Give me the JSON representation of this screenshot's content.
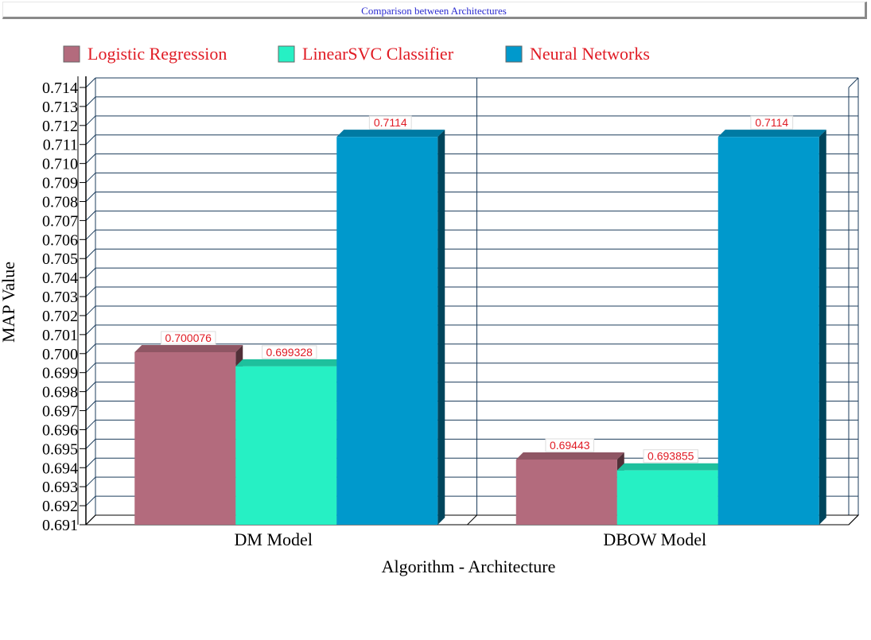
{
  "chart_title": "Comparison between Architectures",
  "chart_data": {
    "type": "bar",
    "title": "Comparison between Architectures",
    "xlabel": "Algorithm - Architecture",
    "ylabel": "MAP Value",
    "categories": [
      "DM Model",
      "DBOW Model"
    ],
    "series": [
      {
        "name": "Logistic Regression",
        "color": "#b36b7d",
        "values": [
          0.700076,
          0.69443
        ],
        "labels": [
          "0.700076",
          "0.69443"
        ]
      },
      {
        "name": "LinearSVC Classifier",
        "color": "#26f0c4",
        "values": [
          0.699328,
          0.693855
        ],
        "labels": [
          "0.699328",
          "0.693855"
        ]
      },
      {
        "name": "Neural Networks",
        "color": "#0099cc",
        "values": [
          0.7114,
          0.7114
        ],
        "labels": [
          "0.7114",
          "0.7114"
        ]
      }
    ],
    "ylim": [
      0.691,
      0.714
    ],
    "yticks": [
      "0.691",
      "0.692",
      "0.693",
      "0.694",
      "0.695",
      "0.696",
      "0.697",
      "0.698",
      "0.699",
      "0.700",
      "0.701",
      "0.702",
      "0.703",
      "0.704",
      "0.705",
      "0.706",
      "0.707",
      "0.708",
      "0.709",
      "0.710",
      "0.711",
      "0.712",
      "0.713",
      "0.714"
    ],
    "legend_position": "top-left",
    "grid": true,
    "style": "3d"
  }
}
